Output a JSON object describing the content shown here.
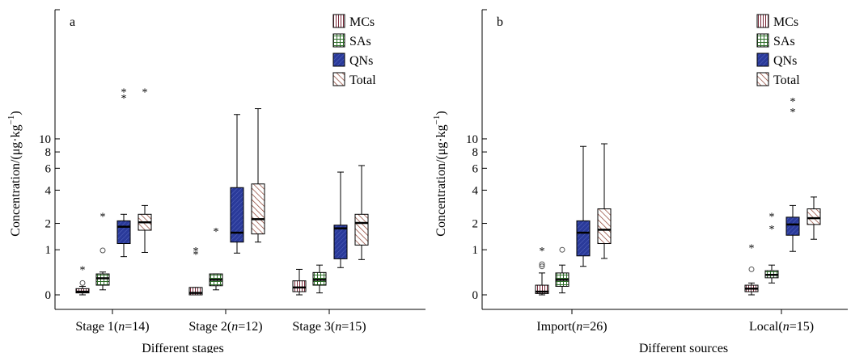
{
  "colors": {
    "MCs": "#7a2a3a",
    "SAs": "#2f6f2a",
    "QNs": "#2a3a9a",
    "Total": "#8a3a2a"
  },
  "chart_data": [
    {
      "type": "box",
      "panel_label": "a",
      "xlabel": "Different stages",
      "ylabel": "Concentration/(μg·kg⁻¹)",
      "y_scale": "log(1+y)",
      "yticks": [
        0,
        1,
        2,
        4,
        6,
        8,
        10
      ],
      "ytick_labels": [
        "0",
        "1",
        "2",
        "4",
        "6",
        "8",
        "10"
      ],
      "legend": [
        "MCs",
        "SAs",
        "QNs",
        "Total"
      ],
      "legend_position": "top-right",
      "categories": [
        "Stage 1(n=14)",
        "Stage 2(n=12)",
        "Stage 3(n=15)"
      ],
      "category_labels": [
        {
          "pre": "Stage 1(",
          "n": "n",
          "post": "=14)"
        },
        {
          "pre": "Stage 2(",
          "n": "n",
          "post": "=12)"
        },
        {
          "pre": "Stage 3(",
          "n": "n",
          "post": "=15)"
        }
      ],
      "series": [
        {
          "name": "MCs",
          "boxes": [
            {
              "min": 0.0,
              "q1": 0.03,
              "median": 0.05,
              "q3": 0.1,
              "max": 0.14,
              "outliers": [
                0.2
              ],
              "extremes": [
                0.5
              ]
            },
            {
              "min": 0.0,
              "q1": 0.0,
              "median": 0.03,
              "q3": 0.12,
              "max": 0.12,
              "outliers": [],
              "extremes": [
                0.9,
                1.0
              ]
            },
            {
              "min": 0.0,
              "q1": 0.05,
              "median": 0.12,
              "q3": 0.24,
              "max": 0.48,
              "outliers": [],
              "extremes": []
            }
          ]
        },
        {
          "name": "SAs",
          "boxes": [
            {
              "min": 0.08,
              "q1": 0.16,
              "median": 0.29,
              "q3": 0.38,
              "max": 0.42,
              "outliers": [
                0.98
              ],
              "extremes": [
                2.4
              ]
            },
            {
              "min": 0.08,
              "q1": 0.15,
              "median": 0.26,
              "q3": 0.38,
              "max": 0.38,
              "outliers": [],
              "extremes": [
                1.7
              ]
            },
            {
              "min": 0.03,
              "q1": 0.16,
              "median": 0.26,
              "q3": 0.41,
              "max": 0.58,
              "outliers": [],
              "extremes": []
            }
          ]
        },
        {
          "name": "QNs",
          "boxes": [
            {
              "min": 0.8,
              "q1": 1.2,
              "median": 1.85,
              "q3": 2.12,
              "max": 2.45,
              "outliers": [],
              "extremes": [
                20.0,
                22.0
              ]
            },
            {
              "min": 0.9,
              "q1": 1.25,
              "median": 1.6,
              "q3": 4.2,
              "max": 15.0,
              "outliers": [],
              "extremes": []
            },
            {
              "min": 0.52,
              "q1": 0.74,
              "median": 1.78,
              "q3": 1.92,
              "max": 5.6,
              "outliers": [],
              "extremes": []
            }
          ]
        },
        {
          "name": "Total",
          "boxes": [
            {
              "min": 0.92,
              "q1": 1.7,
              "median": 2.05,
              "q3": 2.45,
              "max": 2.95,
              "outliers": [],
              "extremes": [
                22.0
              ]
            },
            {
              "min": 1.25,
              "q1": 1.55,
              "median": 2.2,
              "q3": 4.5,
              "max": 16.5,
              "outliers": [],
              "extremes": []
            },
            {
              "min": 0.72,
              "q1": 1.15,
              "median": 2.02,
              "q3": 2.45,
              "max": 6.3,
              "outliers": [],
              "extremes": []
            }
          ]
        }
      ]
    },
    {
      "type": "box",
      "panel_label": "b",
      "xlabel": "Different sources",
      "ylabel": "Concentration/(μg·kg⁻¹)",
      "y_scale": "log(1+y)",
      "yticks": [
        0,
        1,
        2,
        4,
        6,
        8,
        10
      ],
      "ytick_labels": [
        "0",
        "1",
        "2",
        "4",
        "6",
        "8",
        "10"
      ],
      "legend": [
        "MCs",
        "SAs",
        "QNs",
        "Total"
      ],
      "legend_position": "top-right",
      "categories": [
        "Import(n=26)",
        "Local(n=15)"
      ],
      "category_labels": [
        {
          "pre": "Import(",
          "n": "n",
          "post": "=26)"
        },
        {
          "pre": "Local(",
          "n": "n",
          "post": "=15)"
        }
      ],
      "series": [
        {
          "name": "MCs",
          "boxes": [
            {
              "min": 0.0,
              "q1": 0.02,
              "median": 0.05,
              "q3": 0.16,
              "max": 0.4,
              "outliers": [
                0.55,
                0.6
              ],
              "extremes": [
                1.0
              ]
            },
            {
              "min": 0.0,
              "q1": 0.05,
              "median": 0.1,
              "q3": 0.16,
              "max": 0.2,
              "outliers": [
                0.48
              ],
              "extremes": [
                1.1
              ]
            }
          ]
        },
        {
          "name": "SAs",
          "boxes": [
            {
              "min": 0.03,
              "q1": 0.14,
              "median": 0.26,
              "q3": 0.4,
              "max": 0.58,
              "outliers": [
                1.0
              ],
              "extremes": []
            },
            {
              "min": 0.2,
              "q1": 0.3,
              "median": 0.36,
              "q3": 0.45,
              "max": 0.58,
              "outliers": [],
              "extremes": [
                1.8,
                2.4
              ]
            }
          ]
        },
        {
          "name": "QNs",
          "boxes": [
            {
              "min": 0.55,
              "q1": 0.82,
              "median": 1.6,
              "q3": 2.12,
              "max": 8.8,
              "outliers": [],
              "extremes": []
            },
            {
              "min": 0.95,
              "q1": 1.5,
              "median": 1.95,
              "q3": 2.3,
              "max": 2.95,
              "outliers": [],
              "extremes": [
                16.0,
                19.0
              ]
            }
          ]
        },
        {
          "name": "Total",
          "boxes": [
            {
              "min": 0.75,
              "q1": 1.2,
              "median": 1.72,
              "q3": 2.75,
              "max": 9.2,
              "outliers": [],
              "extremes": []
            },
            {
              "min": 1.35,
              "q1": 1.95,
              "median": 2.25,
              "q3": 2.75,
              "max": 3.5,
              "outliers": [],
              "extremes": []
            }
          ]
        }
      ]
    }
  ]
}
